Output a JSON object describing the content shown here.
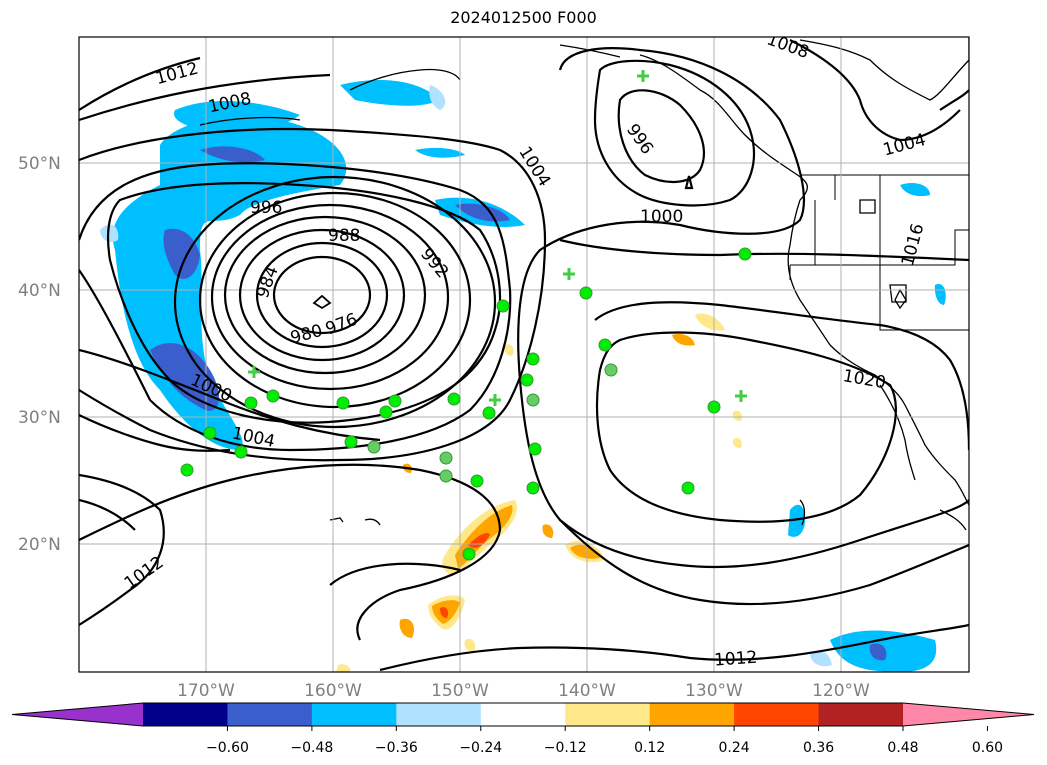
{
  "title": "2024012500 F000",
  "map": {
    "lat_labels": [
      "50°N",
      "40°N",
      "30°N",
      "20°N"
    ],
    "lon_labels": [
      "170°W",
      "160°W",
      "150°W",
      "140°W",
      "130°W",
      "120°W"
    ],
    "extent": {
      "lon_min": -180,
      "lon_max": -110,
      "lat_min": 10,
      "lat_max": 60
    },
    "gridlines": true
  },
  "isobars": {
    "units": "hPa",
    "labels": [
      "1012",
      "1008",
      "996",
      "988",
      "984",
      "992",
      "980",
      "976",
      "1000",
      "1004",
      "1004",
      "1000",
      "996",
      "1008",
      "1004",
      "1016",
      "1020",
      "1012",
      "1012"
    ]
  },
  "colorbar": {
    "ticks": [
      "−0.60",
      "−0.48",
      "−0.36",
      "−0.24",
      "−0.12",
      "0.12",
      "0.24",
      "0.36",
      "0.48",
      "0.60"
    ],
    "colors": [
      "#9932cc",
      "#00008b",
      "#3a5fcd",
      "#00bfff",
      "#b0e2ff",
      "#ffffff",
      "#ffe88a",
      "#ffa500",
      "#ff4500",
      "#b22222",
      "#ff87a8"
    ]
  },
  "markers": {
    "circle_color": "#00ee00",
    "cross_color": "#44cc44"
  }
}
